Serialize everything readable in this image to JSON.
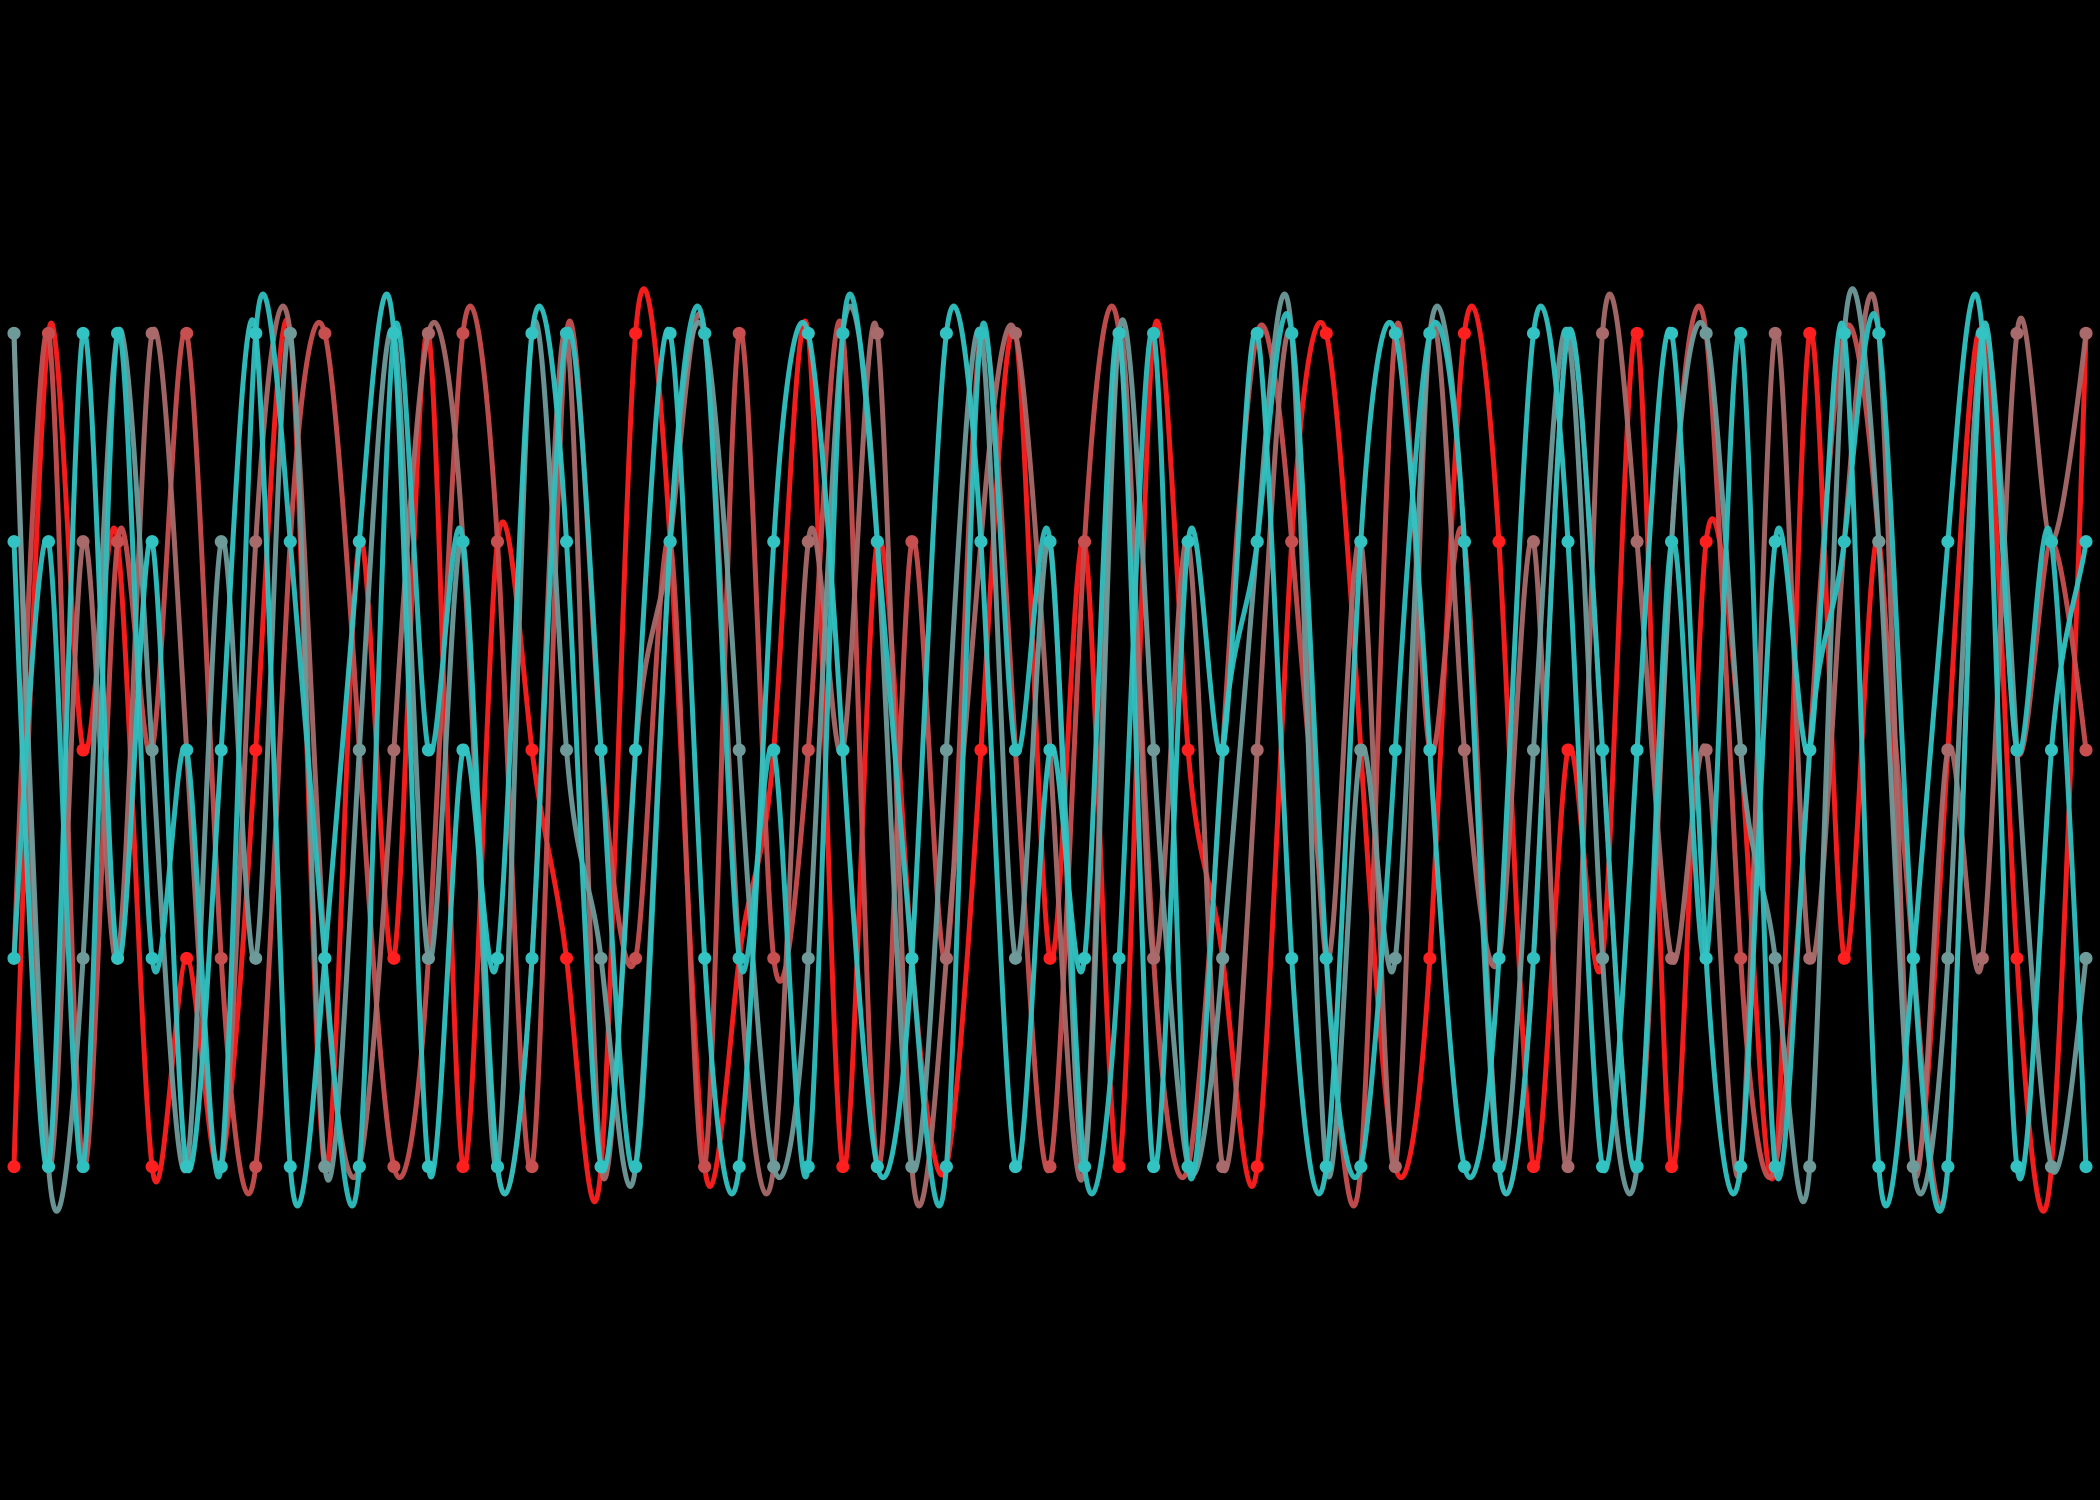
{
  "chart_data": {
    "type": "line",
    "title": "",
    "xlabel": "",
    "ylabel": "",
    "grid": false,
    "legend": "none",
    "smooth": true,
    "x_range": [
      0,
      60
    ],
    "y_range": [
      -1.6,
      5.6
    ],
    "y_levels": [
      0,
      1,
      2,
      3,
      4
    ],
    "series": [
      {
        "color": "#ff1f1f",
        "values": [
          0,
          4,
          2,
          3,
          0,
          1,
          0,
          2,
          4,
          0,
          3,
          1,
          4,
          0,
          3,
          2,
          1,
          0,
          4,
          3,
          0,
          1,
          2,
          4,
          0,
          3,
          1,
          0,
          2,
          4,
          1,
          3,
          0,
          4,
          2,
          1,
          0,
          3,
          4,
          2,
          0,
          1,
          4,
          3,
          0,
          2,
          1,
          4,
          0,
          3,
          2,
          0,
          4,
          1,
          3,
          0,
          2,
          4,
          1,
          0,
          4
        ]
      },
      {
        "color": "#c84f4f",
        "values": [
          1,
          4,
          0,
          3,
          2,
          4,
          1,
          0,
          3,
          4,
          2,
          0,
          1,
          4,
          3,
          0,
          4,
          2,
          1,
          3,
          0,
          4,
          1,
          2,
          4,
          0,
          3,
          1,
          4,
          2,
          0,
          3,
          4,
          1,
          0,
          2,
          4,
          3,
          1,
          0,
          4,
          2,
          3,
          0,
          1,
          4,
          2,
          0,
          3,
          4,
          1,
          0,
          2,
          4,
          3,
          1,
          0,
          4,
          2,
          3,
          2
        ]
      },
      {
        "color": "#a86a6a",
        "values": [
          4,
          0,
          3,
          1,
          4,
          2,
          0,
          3,
          4,
          1,
          0,
          2,
          4,
          3,
          0,
          1,
          4,
          0,
          2,
          3,
          4,
          1,
          0,
          3,
          2,
          4,
          0,
          1,
          3,
          4,
          2,
          0,
          4,
          1,
          3,
          0,
          2,
          4,
          1,
          3,
          0,
          4,
          2,
          1,
          3,
          0,
          4,
          3,
          1,
          2,
          0,
          4,
          1,
          3,
          4,
          0,
          2,
          1,
          4,
          3,
          4
        ]
      },
      {
        "color": "#6f9a9a",
        "values": [
          4,
          0,
          1,
          4,
          2,
          0,
          3,
          1,
          4,
          0,
          2,
          4,
          1,
          3,
          0,
          4,
          2,
          1,
          0,
          3,
          4,
          2,
          0,
          1,
          4,
          3,
          0,
          2,
          4,
          1,
          3,
          0,
          4,
          2,
          0,
          1,
          3,
          4,
          0,
          2,
          1,
          4,
          3,
          0,
          2,
          4,
          1,
          0,
          3,
          4,
          2,
          1,
          0,
          4,
          3,
          0,
          1,
          4,
          2,
          0,
          1
        ]
      },
      {
        "color": "#2fbfbf",
        "values": [
          1,
          3,
          0,
          4,
          1,
          2,
          0,
          4,
          3,
          1,
          0,
          4,
          2,
          3,
          0,
          1,
          4,
          2,
          0,
          3,
          4,
          1,
          2,
          0,
          4,
          3,
          1,
          0,
          4,
          2,
          3,
          0,
          1,
          4,
          0,
          2,
          3,
          4,
          1,
          0,
          2,
          4,
          3,
          0,
          1,
          4,
          2,
          0,
          3,
          1,
          4,
          0,
          2,
          3,
          4,
          1,
          0,
          4,
          2,
          3,
          0
        ]
      },
      {
        "color": "#33c3c3",
        "values": [
          3,
          0,
          4,
          1,
          3,
          0,
          2,
          4,
          0,
          1,
          3,
          4,
          0,
          2,
          1,
          4,
          3,
          0,
          2,
          4,
          1,
          0,
          3,
          4,
          2,
          0,
          1,
          4,
          3,
          0,
          2,
          1,
          4,
          0,
          3,
          2,
          4,
          1,
          0,
          3,
          4,
          2,
          0,
          1,
          4,
          3,
          0,
          2,
          4,
          1,
          0,
          3,
          2,
          4,
          0,
          1,
          3,
          4,
          0,
          2,
          3
        ]
      }
    ]
  }
}
